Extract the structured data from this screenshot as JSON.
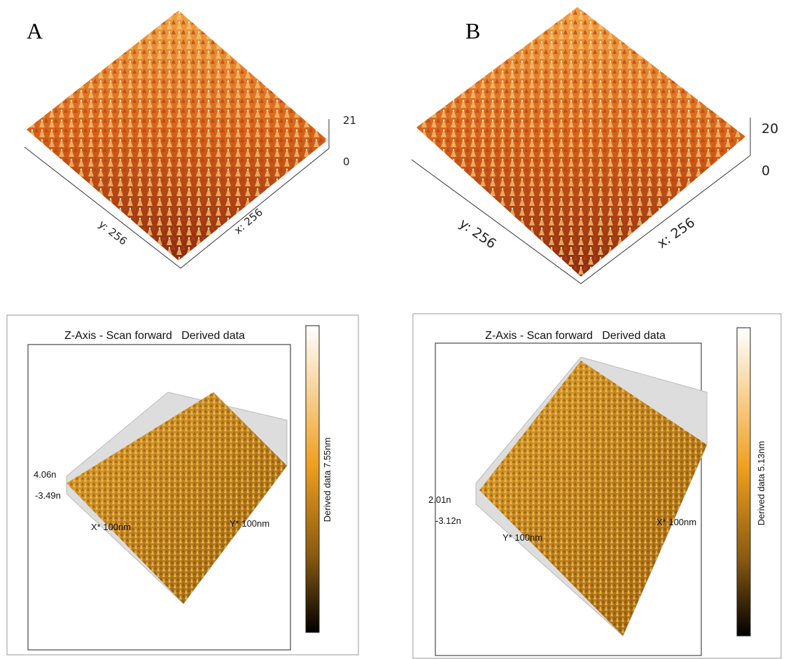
{
  "panels": [
    {
      "label": "A",
      "z_ticks": [
        "21",
        "0"
      ],
      "y_axis": "y: 256",
      "x_axis": "x: 256"
    },
    {
      "label": "B",
      "z_ticks": [
        "20",
        "0"
      ],
      "y_axis": "y: 256",
      "x_axis": "x: 256"
    }
  ],
  "scans": [
    {
      "title": "Z-Axis - Scan forward   Derived data",
      "colorbar_label": "Derived data 7.55nm",
      "z_max": "4.06n",
      "z_min": "-3.49n",
      "x_axis": "X* 100nm",
      "y_axis": "Y* 100nm"
    },
    {
      "title": "Z-Axis - Scan forward   Derived data",
      "colorbar_label": "Derived data 5.13nm",
      "z_max": "2.01n",
      "z_min": "-3.12n",
      "x_axis": "X* 100nm",
      "y_axis": "Y* 100nm"
    }
  ]
}
